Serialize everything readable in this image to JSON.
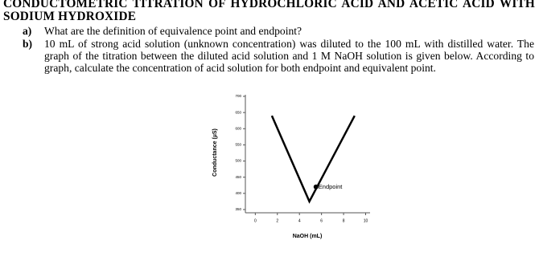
{
  "title": "CONDUCTOMETRIC TITRATION OF HYDROCHLORIC ACID AND ACETIC ACID WITH SODIUM HYDROXIDE",
  "questions": [
    {
      "label": "a)",
      "text": "What are the definition of equivalence point and endpoint?"
    },
    {
      "label": "b)",
      "text": "10 mL of strong acid solution (unknown concentration) was diluted to the 100 mL with distilled water. The graph of the titration between the diluted acid solution and 1 M NaOH solution is given below. According to graph, calculate the concentration of acid solution for both endpoint and equivalent point."
    }
  ],
  "chart_data": {
    "type": "line",
    "x_label": "NaOH (mL)",
    "y_label": "Conductance (µS)",
    "x": [
      1.5,
      4.9,
      9
    ],
    "values": [
      640,
      375,
      640
    ],
    "color": "#000000",
    "xlim": [
      -0.9,
      10.4
    ],
    "xticks": [
      0,
      2,
      4,
      6,
      8,
      10
    ],
    "ylim": [
      340,
      705
    ],
    "yticks": [
      350,
      400,
      450,
      500,
      550,
      600,
      650,
      700
    ],
    "annotation": {
      "text": "Endpoint",
      "x": 5.5,
      "y": 420
    }
  }
}
